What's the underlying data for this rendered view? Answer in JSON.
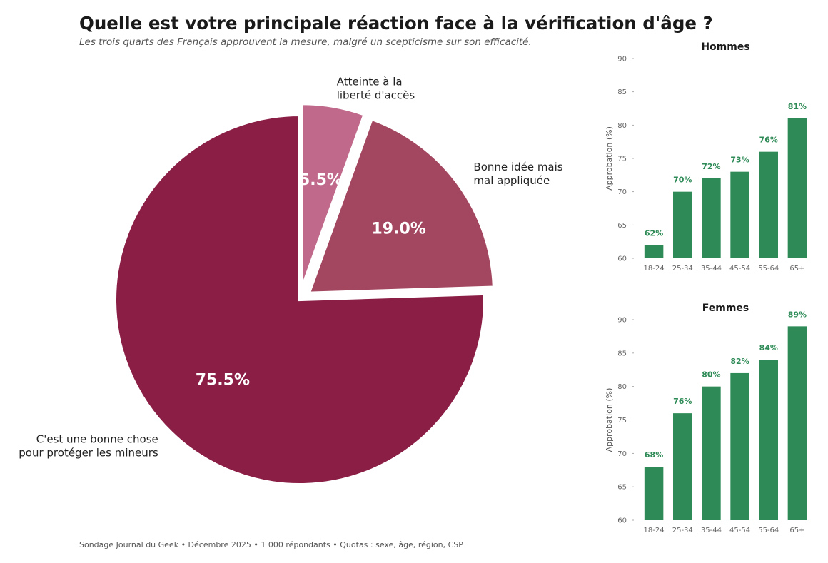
{
  "header": {
    "title": "Quelle est votre principale réaction face à la vérification d'âge ?",
    "subtitle": "Les trois quarts des Français approuvent la mesure, malgré un scepticisme sur son efficacité."
  },
  "footer": {
    "source": "Sondage Journal du Geek • Décembre 2025 • 1 000 répondants • Quotas : sexe, âge, région, CSP"
  },
  "colors": {
    "pie": [
      "#8b1e45",
      "#a3465f",
      "#c0698a"
    ],
    "bar": "#2e8b57"
  },
  "chart_data": [
    {
      "type": "pie",
      "title": "",
      "slices": [
        {
          "label": "C'est une bonne chose pour protéger les mineurs",
          "label_lines": [
            "C'est une bonne chose",
            "pour protéger les mineurs"
          ],
          "value": 75.5,
          "pct_label": "75.5%",
          "exploded": false
        },
        {
          "label": "Bonne idée mais mal appliquée",
          "label_lines": [
            "Bonne idée mais",
            "mal appliquée"
          ],
          "value": 19.0,
          "pct_label": "19.0%",
          "exploded": true
        },
        {
          "label": "Atteinte à la liberté d'accès",
          "label_lines": [
            "Atteinte à la",
            "liberté d'accès"
          ],
          "value": 5.5,
          "pct_label": "5.5%",
          "exploded": true
        }
      ]
    },
    {
      "type": "bar",
      "title": "Hommes",
      "categories": [
        "18-24",
        "25-34",
        "35-44",
        "45-54",
        "55-64",
        "65+"
      ],
      "values": [
        62,
        70,
        72,
        73,
        76,
        81
      ],
      "data_labels": [
        "62%",
        "70%",
        "72%",
        "73%",
        "76%",
        "81%"
      ],
      "ylabel": "Approbation (%)",
      "ylim": [
        60,
        90
      ],
      "yticks": [
        60,
        65,
        70,
        75,
        80,
        85,
        90
      ],
      "grid": false
    },
    {
      "type": "bar",
      "title": "Femmes",
      "categories": [
        "18-24",
        "25-34",
        "35-44",
        "45-54",
        "55-64",
        "65+"
      ],
      "values": [
        68,
        76,
        80,
        82,
        84,
        89
      ],
      "data_labels": [
        "68%",
        "76%",
        "80%",
        "82%",
        "84%",
        "89%"
      ],
      "ylabel": "Approbation (%)",
      "ylim": [
        60,
        90
      ],
      "yticks": [
        60,
        65,
        70,
        75,
        80,
        85,
        90
      ],
      "grid": false
    }
  ]
}
